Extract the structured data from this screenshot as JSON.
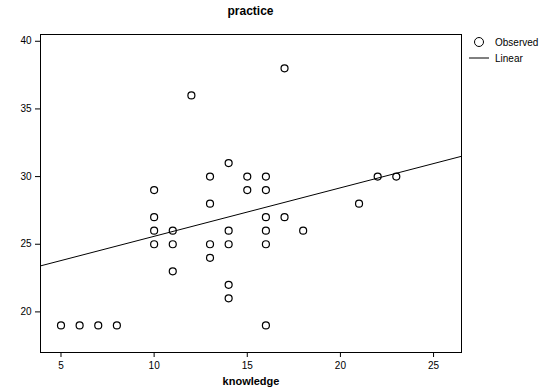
{
  "chart_data": {
    "type": "scatter",
    "title": "practice",
    "x_label": "knowledge",
    "xlim": [
      3.9,
      26.5
    ],
    "ylim": [
      17,
      40.5
    ],
    "xticks": [
      5,
      10,
      15,
      20,
      25
    ],
    "yticks": [
      20,
      25,
      30,
      35,
      40
    ],
    "legend": "right",
    "series": [
      {
        "name": "Observed",
        "type": "scatter",
        "marker": "circle",
        "color": "#000000",
        "x": [
          5,
          6,
          7,
          8,
          10,
          10,
          10,
          10,
          11,
          11,
          11,
          12,
          13,
          13,
          13,
          13,
          14,
          14,
          14,
          14,
          14,
          15,
          15,
          16,
          16,
          16,
          16,
          16,
          16,
          17,
          17,
          18,
          21,
          22,
          23
        ],
        "values": [
          19,
          19,
          19,
          19,
          29,
          27,
          26,
          25,
          26,
          25,
          23,
          36,
          30,
          28,
          25,
          24,
          31,
          26,
          25,
          22,
          21,
          30,
          29,
          30,
          29,
          27,
          26,
          25,
          19,
          38,
          27,
          26,
          28,
          30,
          30
        ]
      },
      {
        "name": "Linear",
        "type": "line",
        "line_style": "solid",
        "color": "#000000",
        "x": [
          3.9,
          26.5
        ],
        "values": [
          23.4,
          31.5
        ]
      }
    ]
  }
}
